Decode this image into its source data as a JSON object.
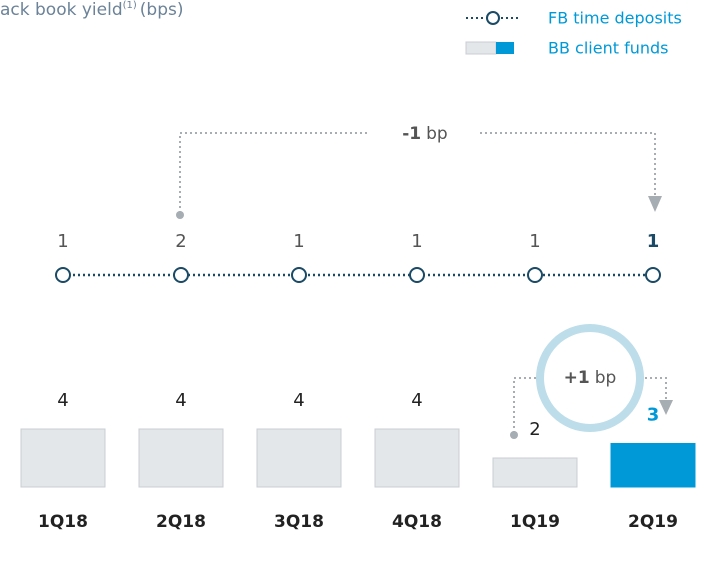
{
  "chart_data": {
    "type": "bar_line",
    "title": "ack book yield",
    "title_sup": "(1)",
    "title_unit": "(bps)",
    "categories": [
      "1Q18",
      "2Q18",
      "3Q18",
      "4Q18",
      "1Q19",
      "2Q19"
    ],
    "series": [
      {
        "name": "FB time deposits",
        "type": "line",
        "color": "#1a4a66",
        "values": [
          1,
          2,
          1,
          1,
          1,
          1
        ]
      },
      {
        "name": "BB client funds",
        "type": "bar",
        "color": "#e3e7ea",
        "colors": [
          "#e3e7ea",
          "#e3e7ea",
          "#e3e7ea",
          "#e3e7ea",
          "#e3e7ea",
          "#0099d8"
        ],
        "values": [
          4,
          4,
          4,
          4,
          2,
          3
        ]
      }
    ],
    "annotations": [
      {
        "bold": "-1",
        "text": "bp"
      },
      {
        "bold": "+1",
        "text": "bp"
      }
    ]
  }
}
